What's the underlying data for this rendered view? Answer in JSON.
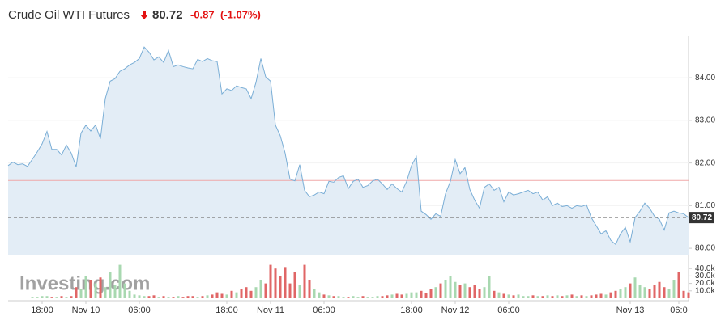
{
  "header": {
    "title": "Crude Oil WTI Futures",
    "price": 80.72,
    "change": -0.87,
    "change_pct": "(-1.07%)"
  },
  "chart_data": {
    "type": "area",
    "watermark": "Investing.com",
    "values": [
      81.94,
      82.02,
      81.96,
      81.98,
      81.92,
      82.09,
      82.26,
      82.45,
      82.74,
      82.32,
      82.32,
      82.19,
      82.42,
      82.23,
      81.91,
      82.7,
      82.89,
      82.75,
      82.89,
      82.57,
      83.51,
      83.92,
      83.98,
      84.15,
      84.21,
      84.3,
      84.36,
      84.45,
      84.72,
      84.6,
      84.42,
      84.49,
      84.36,
      84.64,
      84.26,
      84.3,
      84.26,
      84.23,
      84.21,
      84.43,
      84.38,
      84.45,
      84.4,
      84.38,
      83.62,
      83.74,
      83.7,
      83.81,
      83.77,
      83.74,
      83.51,
      83.89,
      84.45,
      84.02,
      83.92,
      82.89,
      82.64,
      82.23,
      81.62,
      81.58,
      81.96,
      81.36,
      81.21,
      81.25,
      81.32,
      81.28,
      81.57,
      81.55,
      81.66,
      81.7,
      81.4,
      81.57,
      81.62,
      81.43,
      81.47,
      81.58,
      81.62,
      81.51,
      81.38,
      81.51,
      81.4,
      81.32,
      81.57,
      81.94,
      82.15,
      80.87,
      80.79,
      80.68,
      80.81,
      80.75,
      81.28,
      81.57,
      82.08,
      81.75,
      81.89,
      81.38,
      81.13,
      80.94,
      81.43,
      81.51,
      81.36,
      81.43,
      81.09,
      81.32,
      81.25,
      81.28,
      81.32,
      81.36,
      81.28,
      81.32,
      81.13,
      81.21,
      81.0,
      81.06,
      80.98,
      81.0,
      80.94,
      81.0,
      80.98,
      81.02,
      80.72,
      80.53,
      80.34,
      80.41,
      80.19,
      80.09,
      80.34,
      80.49,
      80.15,
      80.72,
      80.87,
      81.06,
      80.94,
      80.75,
      80.68,
      80.43,
      80.83,
      80.87,
      80.83,
      80.81,
      80.72
    ],
    "volume": [
      1000,
      1000,
      1000,
      1000,
      1000,
      2000,
      2000,
      3000,
      3000,
      2000,
      2000,
      3000,
      2000,
      3000,
      15000,
      12000,
      30000,
      25000,
      20000,
      28000,
      15000,
      35000,
      18000,
      45000,
      20000,
      10000,
      5000,
      4000,
      3000,
      3000,
      4000,
      2000,
      3000,
      2000,
      2000,
      3000,
      2000,
      3000,
      3000,
      2000,
      3000,
      4000,
      5000,
      8000,
      6000,
      5000,
      10000,
      8000,
      12000,
      15000,
      10000,
      15000,
      25000,
      20000,
      45000,
      40000,
      30000,
      42000,
      20000,
      35000,
      18000,
      45000,
      25000,
      12000,
      8000,
      5000,
      4000,
      3000,
      3000,
      2000,
      2000,
      3000,
      2000,
      3000,
      2000,
      2000,
      3000,
      3000,
      4000,
      5000,
      6000,
      5000,
      6000,
      8000,
      8000,
      10000,
      7000,
      12000,
      15000,
      20000,
      25000,
      30000,
      22000,
      18000,
      20000,
      15000,
      18000,
      12000,
      15000,
      30000,
      10000,
      8000,
      6000,
      5000,
      4000,
      5000,
      3000,
      3000,
      4000,
      3000,
      3000,
      4000,
      3000,
      4000,
      3000,
      4000,
      5000,
      3000,
      4000,
      3000,
      4000,
      5000,
      6000,
      5000,
      8000,
      10000,
      12000,
      15000,
      20000,
      28000,
      18000,
      15000,
      12000,
      18000,
      22000,
      15000,
      12000,
      25000,
      35000,
      10000,
      8000
    ],
    "color": "#7aaed6",
    "fill": "#e3edf6",
    "volume_colors": {
      "up": "#a8d8b0",
      "down": "#e06666"
    },
    "prev_close": 81.59,
    "prev_close_color": "#f0a8a8",
    "last_value": 80.72,
    "xlim": [
      0,
      140
    ],
    "xticks": [
      {
        "value": 7,
        "label": "18:00"
      },
      {
        "value": 16,
        "label": "Nov 10"
      },
      {
        "value": 27,
        "label": "06:00"
      },
      {
        "value": 45,
        "label": "18:00"
      },
      {
        "value": 54,
        "label": "Nov 11"
      },
      {
        "value": 65,
        "label": "06:00"
      },
      {
        "value": 83,
        "label": "18:00"
      },
      {
        "value": 92,
        "label": "Nov 12"
      },
      {
        "value": 103,
        "label": "06:00"
      },
      {
        "value": 128,
        "label": "Nov 13"
      },
      {
        "value": 138,
        "label": "06:0"
      }
    ],
    "ylim": [
      79.85,
      84.97
    ],
    "yticks": [
      {
        "value": 80,
        "label": "80.00"
      },
      {
        "value": 81,
        "label": "81.00"
      },
      {
        "value": 82,
        "label": "82.00"
      },
      {
        "value": 83,
        "label": "83.00"
      },
      {
        "value": 84,
        "label": "84.00"
      }
    ],
    "vlim": [
      0,
      50000
    ],
    "vticks": [
      {
        "value": 10000,
        "label": "10.0k"
      },
      {
        "value": 20000,
        "label": "20.0k"
      },
      {
        "value": 30000,
        "label": "30.0k"
      },
      {
        "value": 40000,
        "label": "40.0k"
      }
    ]
  }
}
